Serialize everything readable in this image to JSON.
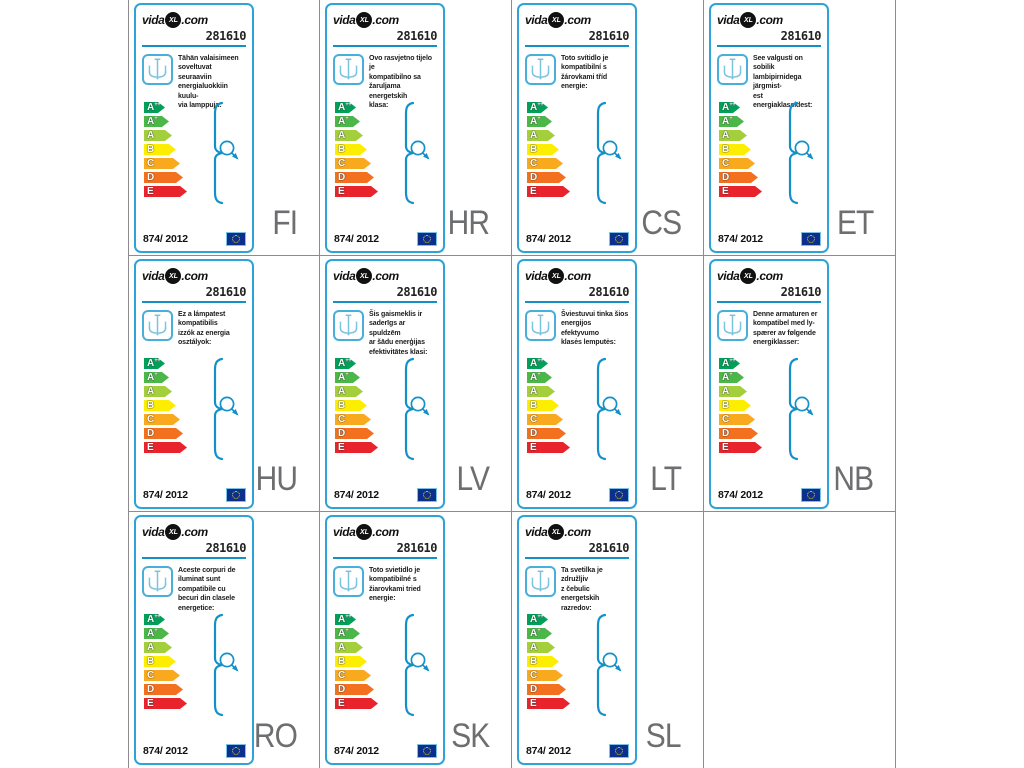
{
  "shared": {
    "brand": {
      "prefix": "vida",
      "badge": "XL",
      "suffix": ".com"
    },
    "product_number": "281610",
    "regulation": "874/ 2012",
    "energy_classes": [
      {
        "label": "A",
        "sup": "++",
        "color": "#00a05a"
      },
      {
        "label": "A",
        "sup": "+",
        "color": "#4bb748"
      },
      {
        "label": "A",
        "sup": "",
        "color": "#a3cf3d"
      },
      {
        "label": "B",
        "sup": "",
        "color": "#fdee00"
      },
      {
        "label": "C",
        "sup": "",
        "color": "#f9a91d"
      },
      {
        "label": "D",
        "sup": "",
        "color": "#f3701f"
      },
      {
        "label": "E",
        "sup": "",
        "color": "#e8232b"
      }
    ]
  },
  "cards": [
    {
      "lang": "FI",
      "description": "Tähän valaisimeen\nsoveltuvat seuraaviin\nenergialuokkiin kuulu-\nvia lamppuja:"
    },
    {
      "lang": "HR",
      "description": "Ovo rasvjetno tijelo je\nkompatibilno sa\nžaruljama energetskih\nklasa:"
    },
    {
      "lang": "CS",
      "description": "Toto svítidlo je\nkompatibilní s\nžárovkami tříd\nenergie:"
    },
    {
      "lang": "ET",
      "description": "See valgusti on sobilik\nlambipirnidega järgmist-\nest energiaklassidest:"
    },
    {
      "lang": "HU",
      "description": "Ez a lámpatest\nkompatibilis\nizzók az energia\nosztályok:"
    },
    {
      "lang": "LV",
      "description": "Šis gaismeklis ir\nsaderīgs ar spuldzēm\nar šādu enerģijas\nefektivitātes klasi:"
    },
    {
      "lang": "LT",
      "description": "Šviestuvui tinka šios\nenergijos efektyvumo\nklasės lemputės:"
    },
    {
      "lang": "NB",
      "description": "Denne armaturen er\nkompatibel med ly-\nspærer av følgende\nenergiklasser:"
    },
    {
      "lang": "RO",
      "description": "Aceste corpuri de\niluminat sunt\ncompatibile cu\nbecuri din clasele\nenergetice:"
    },
    {
      "lang": "SK",
      "description": "Toto svietidlo je\nkompatibilné s\nžiarovkami tried\nenergie:"
    },
    {
      "lang": "SL",
      "description": "Ta svetilka je združljiv\nz čebulic energetskih\nrazredov:"
    }
  ],
  "colors": {
    "card_border": "#2ea3d8",
    "accent_blue": "#1390c8",
    "icon_blue": "#7cc3e2",
    "icon_box_border": "#4aaedb",
    "lang_text": "#6d6e70",
    "grid_line": "#8c8c8c",
    "flag_bg": "#0b2f8c",
    "flag_stars": "#ffd500"
  }
}
